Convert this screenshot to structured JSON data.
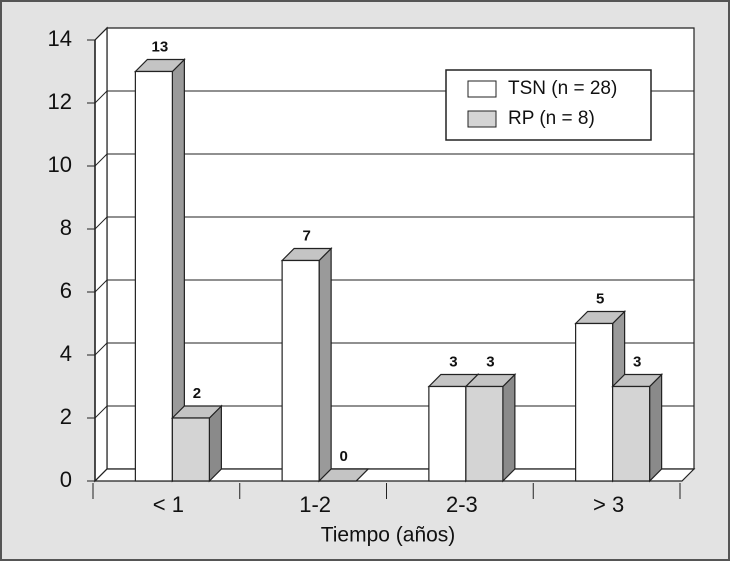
{
  "chart_data": {
    "type": "bar",
    "x_label": "Tiempo (años)",
    "categories": [
      "< 1",
      "1-2",
      "2-3",
      "> 3"
    ],
    "series": [
      {
        "name": "TSN (n = 28)",
        "color": "#ffffff",
        "values": [
          13,
          7,
          3,
          5
        ]
      },
      {
        "name": "RP (n = 8)",
        "color": "#d4d4d4",
        "values": [
          2,
          0,
          3,
          3
        ]
      }
    ],
    "ylim": [
      0,
      14
    ],
    "yticks": [
      0,
      2,
      4,
      6,
      8,
      10,
      12,
      14
    ],
    "grid": true,
    "legend": "upper right"
  }
}
